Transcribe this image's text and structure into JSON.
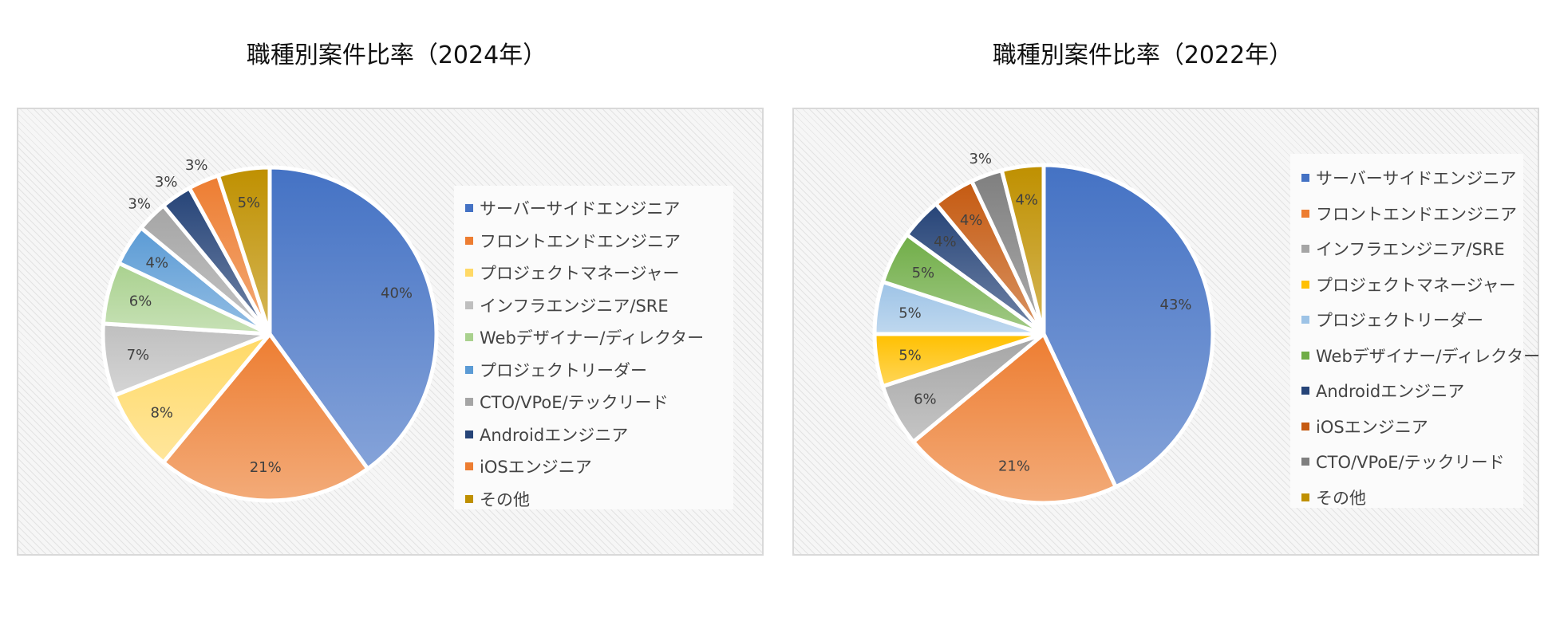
{
  "chart_data": [
    {
      "type": "pie",
      "title": "職種別案件比率（2024年）",
      "categories": [
        "サーバーサイドエンジニア",
        "フロントエンドエンジニア",
        "プロジェクトマネージャー",
        "インフラエンジニア/SRE",
        "Webデザイナー/ディレクター",
        "プロジェクトリーダー",
        "CTO/VPoE/テックリード",
        "Androidエンジニア",
        "iOSエンジニア",
        "その他"
      ],
      "values": [
        40,
        21,
        8,
        7,
        6,
        4,
        3,
        3,
        3,
        5
      ],
      "labels": [
        "40%",
        "21%",
        "8%",
        "7%",
        "6%",
        "4%",
        "3%",
        "3%",
        "3%",
        "5%"
      ],
      "colors": [
        "#4472C4",
        "#ED7D31",
        "#FFD966",
        "#BFBFBF",
        "#A9D18E",
        "#5B9BD5",
        "#A5A5A5",
        "#264478",
        "#ED7D31",
        "#BF9000"
      ],
      "legend_position": "right"
    },
    {
      "type": "pie",
      "title": "職種別案件比率（2022年）",
      "categories": [
        "サーバーサイドエンジニア",
        "フロントエンドエンジニア",
        "インフラエンジニア/SRE",
        "プロジェクトマネージャー",
        "プロジェクトリーダー",
        "Webデザイナー/ディレクター",
        "Androidエンジニア",
        "iOSエンジニア",
        "CTO/VPoE/テックリード",
        "その他"
      ],
      "values": [
        43,
        21,
        6,
        5,
        5,
        5,
        4,
        4,
        3,
        4
      ],
      "labels": [
        "43%",
        "21%",
        "6%",
        "5%",
        "5%",
        "5%",
        "4%",
        "4%",
        "3%",
        "4%"
      ],
      "colors": [
        "#4472C4",
        "#ED7D31",
        "#A5A5A5",
        "#FFC000",
        "#9DC3E6",
        "#70AD47",
        "#264478",
        "#C55A11",
        "#7F7F7F",
        "#BF9000"
      ],
      "legend_position": "right"
    }
  ]
}
